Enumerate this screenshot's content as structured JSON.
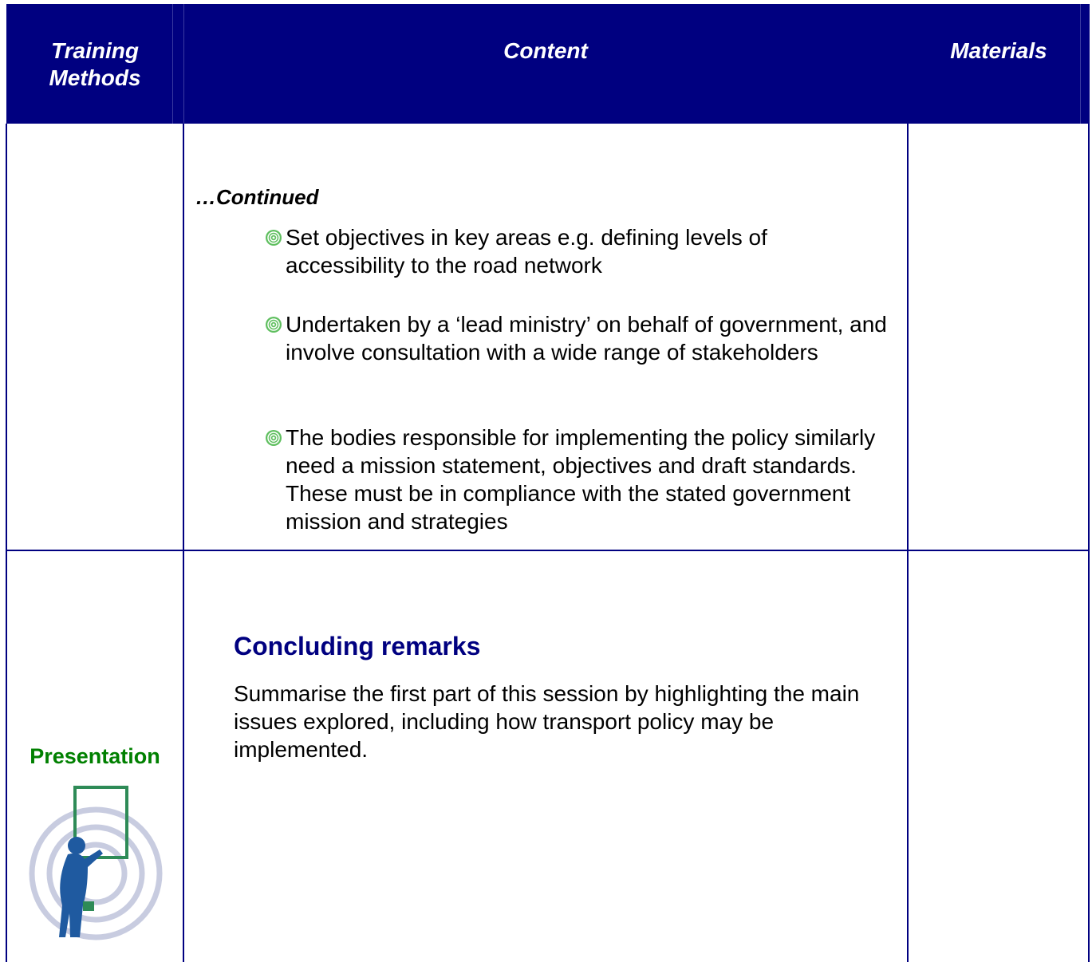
{
  "header": {
    "columns": [
      "Training Methods",
      "Content",
      "Materials"
    ]
  },
  "rows": [
    {
      "method": null,
      "content": {
        "heading": "…Continued",
        "bullets": [
          "Set objectives in key areas e.g. defining levels of accessibility to the road network",
          "Undertaken by a ‘lead ministry’ on behalf of government, and involve consultation with a wide range of stakeholders",
          "The bodies responsible for implementing the policy similarly need a mission statement, objectives and draft standards. These must be in compliance with the stated government mission and strategies"
        ]
      }
    },
    {
      "method": "Presentation",
      "content": {
        "heading": "Concluding remarks",
        "text": "Summarise the first part of this session by highlighting the main issues explored, including how transport policy may be implemented."
      }
    }
  ]
}
